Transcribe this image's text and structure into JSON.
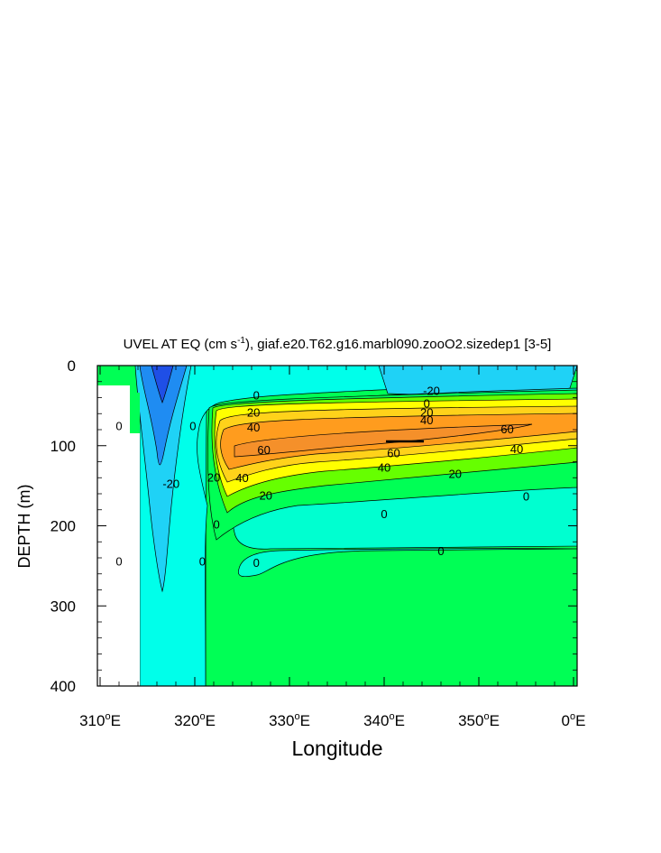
{
  "chart_data": {
    "type": "contour",
    "title": "UVEL AT EQ (cm s",
    "title_superscript": "-1",
    "title_suffix": "), giaf.e20.T62.g16.marbl090.zooO2.sizedep1 [3-5]",
    "xlabel": "Longitude",
    "ylabel": "DEPTH (m)",
    "xlim": [
      310,
      360
    ],
    "ylim": [
      400,
      0
    ],
    "y_reversed": true,
    "x_ticks": [
      {
        "value": 310,
        "num": "310",
        "sup": "o",
        "unit": "E"
      },
      {
        "value": 320,
        "num": "320",
        "sup": "o",
        "unit": "E"
      },
      {
        "value": 330,
        "num": "330",
        "sup": "o",
        "unit": "E"
      },
      {
        "value": 340,
        "num": "340",
        "sup": "o",
        "unit": "E"
      },
      {
        "value": 350,
        "num": "350",
        "sup": "o",
        "unit": "E"
      },
      {
        "value": 360,
        "num": "0",
        "sup": "o",
        "unit": "E"
      }
    ],
    "y_ticks": [
      {
        "value": 0,
        "label": "0"
      },
      {
        "value": 100,
        "label": "100"
      },
      {
        "value": 200,
        "label": "200"
      },
      {
        "value": 300,
        "label": "300"
      },
      {
        "value": 400,
        "label": "400"
      }
    ],
    "contour_interval": 10,
    "levels": [
      -30,
      -20,
      -10,
      0,
      10,
      20,
      30,
      40,
      50,
      60
    ],
    "fill_colors": {
      "lt_-30": "#1f4fe6",
      "-30_-20": "#1f8cf2",
      "-20_-10": "#1fd2f6",
      "-10_0": "#00ffea",
      "0_10": "#00ffd0",
      "10_20": "#00ff55",
      "20_30": "#66ff00",
      "30_40": "#ffff00",
      "40_50": "#ffd21a",
      "50_60": "#ff9c1e",
      "gt_60": "#f5902a"
    },
    "land_mask_color": "#ffffff",
    "contour_labels": [
      {
        "x": 326.5,
        "y": 38,
        "text": "0"
      },
      {
        "x": 312.0,
        "y": 76,
        "text": "0"
      },
      {
        "x": 319.8,
        "y": 76,
        "text": "0"
      },
      {
        "x": 312.0,
        "y": 245,
        "text": "0"
      },
      {
        "x": 320.8,
        "y": 245,
        "text": "0"
      },
      {
        "x": 322.0,
        "y": 140,
        "text": "20"
      },
      {
        "x": 317.5,
        "y": 148,
        "text": "-20"
      },
      {
        "x": 326.2,
        "y": 59,
        "text": "20"
      },
      {
        "x": 326.2,
        "y": 78,
        "text": "40"
      },
      {
        "x": 327.3,
        "y": 106,
        "text": "60"
      },
      {
        "x": 325.0,
        "y": 141,
        "text": "40"
      },
      {
        "x": 327.5,
        "y": 163,
        "text": "20"
      },
      {
        "x": 322.3,
        "y": 199,
        "text": "0"
      },
      {
        "x": 326.5,
        "y": 247,
        "text": "0"
      },
      {
        "x": 345.0,
        "y": 32,
        "text": "-20"
      },
      {
        "x": 344.5,
        "y": 48,
        "text": "0"
      },
      {
        "x": 344.5,
        "y": 59,
        "text": "20"
      },
      {
        "x": 344.5,
        "y": 69,
        "text": "40"
      },
      {
        "x": 353.0,
        "y": 80,
        "text": "60"
      },
      {
        "x": 341.0,
        "y": 110,
        "text": "60"
      },
      {
        "x": 354.0,
        "y": 105,
        "text": "40"
      },
      {
        "x": 340.0,
        "y": 128,
        "text": "40"
      },
      {
        "x": 347.5,
        "y": 136,
        "text": "20"
      },
      {
        "x": 355.0,
        "y": 164,
        "text": "0"
      },
      {
        "x": 340.0,
        "y": 186,
        "text": "0"
      },
      {
        "x": 346.0,
        "y": 232,
        "text": "0"
      }
    ]
  }
}
